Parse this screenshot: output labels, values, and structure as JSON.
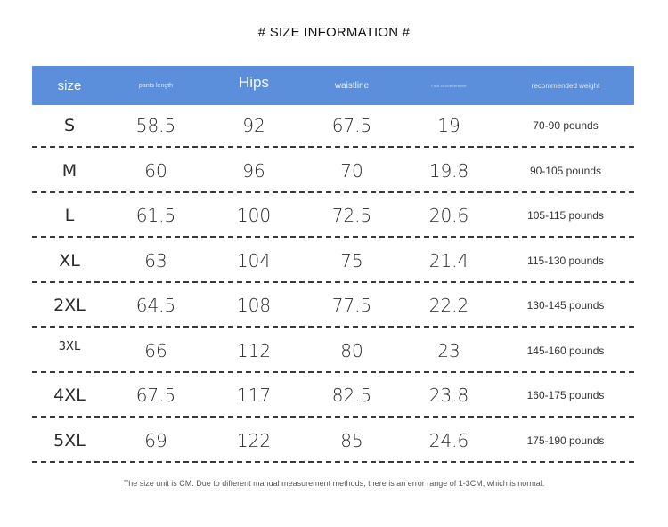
{
  "title": "# SIZE INFORMATION #",
  "table": {
    "header_color": "#5b8fdc",
    "headers": [
      "size",
      "pants length",
      "Hips",
      "waistline",
      "Foot circumference",
      "recommended weight"
    ],
    "rows": [
      {
        "size": "S",
        "pants_length": "58.5",
        "hips": "92",
        "waistline": "67.5",
        "foot": "19",
        "weight": "70-90 pounds"
      },
      {
        "size": "M",
        "pants_length": "60",
        "hips": "96",
        "waistline": "70",
        "foot": "19.8",
        "weight": "90-105 pounds"
      },
      {
        "size": "L",
        "pants_length": "61.5",
        "hips": "100",
        "waistline": "72.5",
        "foot": "20.6",
        "weight": "105-115 pounds"
      },
      {
        "size": "XL",
        "pants_length": "63",
        "hips": "104",
        "waistline": "75",
        "foot": "21.4",
        "weight": "115-130 pounds"
      },
      {
        "size": "2XL",
        "pants_length": "64.5",
        "hips": "108",
        "waistline": "77.5",
        "foot": "22.2",
        "weight": "130-145 pounds"
      },
      {
        "size": "3XL",
        "pants_length": "66",
        "hips": "112",
        "waistline": "80",
        "foot": "23",
        "weight": "145-160 pounds"
      },
      {
        "size": "4XL",
        "pants_length": "67.5",
        "hips": "117",
        "waistline": "82.5",
        "foot": "23.8",
        "weight": "160-175 pounds"
      },
      {
        "size": "5XL",
        "pants_length": "69",
        "hips": "122",
        "waistline": "85",
        "foot": "24.6",
        "weight": "175-190 pounds"
      }
    ]
  },
  "footnote": "The size unit is CM. Due to different manual measurement methods, there is an error range of 1-3CM, which is normal."
}
